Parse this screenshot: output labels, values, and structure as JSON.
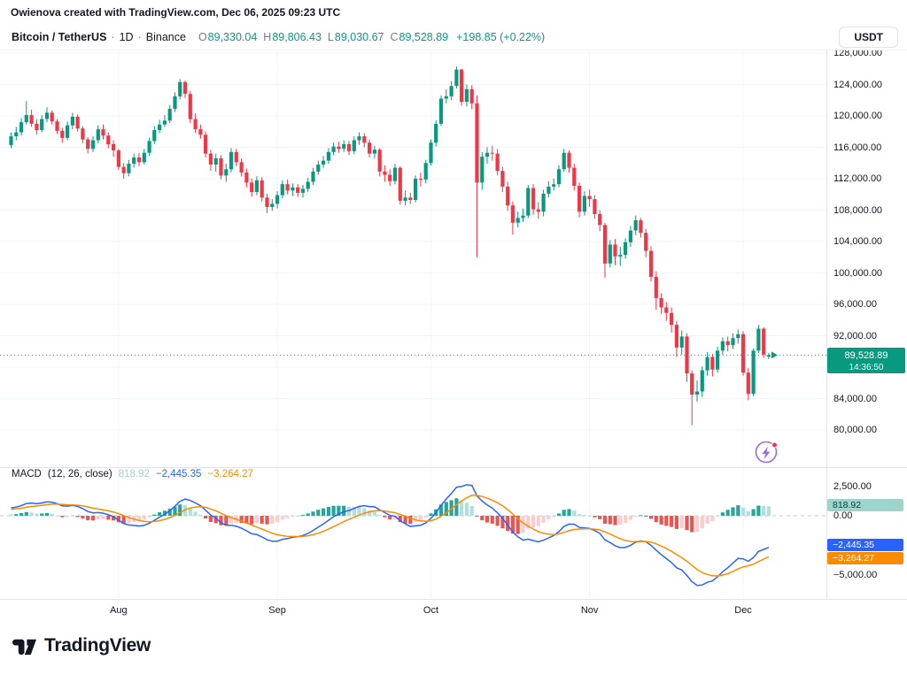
{
  "attribution": "Owienova created with TradingView.com, Dec 06, 2025 09:23 UTC",
  "header": {
    "symbol": "Bitcoin / TetherUS",
    "separator": "·",
    "interval": "1D",
    "exchange": "Binance",
    "ohlc": {
      "o_label": "O",
      "o": "89,330.04",
      "h_label": "H",
      "h": "89,806.43",
      "l_label": "L",
      "l": "89,030.67",
      "c_label": "C",
      "c": "89,528.89",
      "change": "+198.85 (+0.22%)"
    },
    "currency_button": "USDT"
  },
  "price_scale": {
    "ticks": [
      "128,000.00",
      "124,000.00",
      "120,000.00",
      "116,000.00",
      "112,000.00",
      "108,000.00",
      "104,000.00",
      "100,000.00",
      "96,000.00",
      "92,000.00",
      "88,000.00",
      "84,000.00",
      "80,000.00"
    ],
    "tick_values": [
      128000,
      124000,
      120000,
      116000,
      112000,
      108000,
      104000,
      100000,
      96000,
      92000,
      88000,
      84000,
      80000
    ],
    "last_price_label": "89,528.89",
    "countdown": "14:36:50"
  },
  "macd": {
    "title": "MACD",
    "params": "(12, 26, close)",
    "hist_value": "818.92",
    "macd_value": "−2,445.35",
    "signal_value": "−3,264.27",
    "ticks": [
      {
        "label": "2,500.00",
        "value": 2500
      },
      {
        "label": "0.00",
        "value": 0
      },
      {
        "label": "−5,000.00",
        "value": -5000
      }
    ]
  },
  "time_axis": {
    "months": [
      {
        "label": "Aug",
        "day_index": 21
      },
      {
        "label": "Sep",
        "day_index": 52
      },
      {
        "label": "Oct",
        "day_index": 82
      },
      {
        "label": "Nov",
        "day_index": 113
      },
      {
        "label": "Dec",
        "day_index": 143
      }
    ]
  },
  "logo_text": "TradingView",
  "colors": {
    "up": "#089981",
    "down": "#f23645",
    "macd_line": "#2962ff",
    "signal_line": "#fb8c00",
    "hist_up": "#26a69a",
    "hist_up_fade": "#b2dfdb",
    "hist_down": "#ef5350",
    "hist_down_fade": "#fccbcd",
    "badge": "#089981",
    "hist_badge_bg": "#9fd4ca",
    "hist_badge_text": "#12423b",
    "macd_badge_bg": "#2962ff",
    "signal_badge_bg": "#fb8c00",
    "grid": "#f2f4f8",
    "zero_line": "#b6bcc6"
  },
  "chart_data": {
    "type": "candlestick+macd",
    "symbol": "Bitcoin / TetherUS (Binance)",
    "interval": "1D",
    "start_date": "2025-07-11",
    "price_axis_range": [
      79500,
      128400
    ],
    "macd_axis_range": [
      -7000,
      3600
    ],
    "macd_params": [
      12,
      26,
      9
    ],
    "macd_readout": {
      "histogram": 818.92,
      "macd": -2445.35,
      "signal": -3264.27
    },
    "last": {
      "open": 89330.04,
      "high": 89806.43,
      "low": 89030.67,
      "close": 89528.89,
      "change": 198.85,
      "change_pct": 0.22
    },
    "candles": [
      [
        116300,
        117900,
        115900,
        117400
      ],
      [
        117400,
        118600,
        116900,
        117900
      ],
      [
        117900,
        119700,
        117500,
        119200
      ],
      [
        119200,
        121900,
        118900,
        120100
      ],
      [
        120100,
        120800,
        118600,
        119000
      ],
      [
        119000,
        119600,
        117600,
        118200
      ],
      [
        118200,
        120100,
        117900,
        119600
      ],
      [
        119600,
        121100,
        119200,
        120400
      ],
      [
        120400,
        120700,
        118900,
        119300
      ],
      [
        119300,
        119600,
        117700,
        118100
      ],
      [
        118100,
        118500,
        116600,
        117200
      ],
      [
        117200,
        119300,
        116900,
        118800
      ],
      [
        118800,
        120400,
        118300,
        119900
      ],
      [
        119900,
        120200,
        118000,
        118400
      ],
      [
        118400,
        118700,
        116500,
        117000
      ],
      [
        117000,
        117300,
        115200,
        115800
      ],
      [
        115800,
        117400,
        115400,
        116900
      ],
      [
        116900,
        118800,
        116500,
        118300
      ],
      [
        118300,
        118900,
        117000,
        117500
      ],
      [
        117500,
        117900,
        115900,
        116400
      ],
      [
        116400,
        116900,
        114800,
        115600
      ],
      [
        115600,
        115800,
        113100,
        113500
      ],
      [
        113500,
        114000,
        112000,
        112700
      ],
      [
        112700,
        114400,
        112300,
        113900
      ],
      [
        113900,
        115200,
        113400,
        114700
      ],
      [
        114700,
        115300,
        113600,
        114100
      ],
      [
        114100,
        115800,
        113800,
        115300
      ],
      [
        115300,
        117200,
        114900,
        116800
      ],
      [
        116800,
        118700,
        116400,
        118200
      ],
      [
        118200,
        119500,
        117800,
        118900
      ],
      [
        118900,
        120100,
        118600,
        119400
      ],
      [
        119400,
        121400,
        119100,
        120900
      ],
      [
        120900,
        123000,
        120500,
        122500
      ],
      [
        122500,
        124700,
        122100,
        124300
      ],
      [
        124300,
        124500,
        122300,
        122800
      ],
      [
        122800,
        123200,
        119100,
        119600
      ],
      [
        119600,
        120300,
        117800,
        118300
      ],
      [
        118300,
        118900,
        117100,
        117600
      ],
      [
        117600,
        118000,
        114700,
        115200
      ],
      [
        115200,
        115700,
        113000,
        113800
      ],
      [
        113800,
        115200,
        112900,
        114600
      ],
      [
        114600,
        115000,
        111900,
        112400
      ],
      [
        112400,
        113900,
        111600,
        113200
      ],
      [
        113200,
        115900,
        112800,
        115400
      ],
      [
        115400,
        115800,
        113600,
        114100
      ],
      [
        114100,
        114600,
        112300,
        112800
      ],
      [
        112800,
        113300,
        110900,
        111500
      ],
      [
        111500,
        112000,
        109700,
        110300
      ],
      [
        110300,
        112300,
        109900,
        111800
      ],
      [
        111800,
        112200,
        109100,
        109600
      ],
      [
        109600,
        110100,
        107600,
        108400
      ],
      [
        108400,
        109400,
        107900,
        108800
      ],
      [
        108800,
        110400,
        108200,
        109900
      ],
      [
        109900,
        111800,
        109500,
        111300
      ],
      [
        111300,
        111900,
        110000,
        110500
      ],
      [
        110500,
        111400,
        109800,
        110900
      ],
      [
        110900,
        111300,
        109700,
        110200
      ],
      [
        110200,
        111200,
        109600,
        110700
      ],
      [
        110700,
        112100,
        110300,
        111600
      ],
      [
        111600,
        113400,
        111200,
        112900
      ],
      [
        112900,
        114300,
        112500,
        113800
      ],
      [
        113800,
        114900,
        113400,
        114300
      ],
      [
        114300,
        115900,
        113900,
        115400
      ],
      [
        115400,
        116600,
        115000,
        116100
      ],
      [
        116100,
        116700,
        115300,
        115800
      ],
      [
        115800,
        116900,
        115400,
        116400
      ],
      [
        116400,
        116800,
        115000,
        115500
      ],
      [
        115500,
        117400,
        115100,
        116900
      ],
      [
        116900,
        117900,
        116300,
        117400
      ],
      [
        117400,
        117800,
        116000,
        116600
      ],
      [
        116600,
        117000,
        114700,
        115200
      ],
      [
        115200,
        116200,
        114600,
        115700
      ],
      [
        115700,
        115900,
        112300,
        112900
      ],
      [
        112900,
        113700,
        111600,
        112500
      ],
      [
        112500,
        113200,
        111100,
        111700
      ],
      [
        111700,
        113900,
        111300,
        113400
      ],
      [
        113400,
        113600,
        108700,
        109200
      ],
      [
        109200,
        110500,
        108600,
        109600
      ],
      [
        109600,
        110200,
        108800,
        109300
      ],
      [
        109300,
        112400,
        109000,
        112000
      ],
      [
        112000,
        112800,
        111000,
        111900
      ],
      [
        111900,
        114400,
        111400,
        114000
      ],
      [
        114000,
        117000,
        113700,
        116600
      ],
      [
        116600,
        119400,
        116100,
        119000
      ],
      [
        119000,
        122600,
        118700,
        122200
      ],
      [
        122200,
        123400,
        121600,
        122500
      ],
      [
        122500,
        124400,
        122000,
        123800
      ],
      [
        123800,
        126300,
        123500,
        125900
      ],
      [
        125900,
        126000,
        121300,
        121800
      ],
      [
        121800,
        124000,
        121200,
        123400
      ],
      [
        123400,
        123900,
        120900,
        121600
      ],
      [
        121600,
        122600,
        102000,
        111500
      ],
      [
        111500,
        115400,
        110600,
        114800
      ],
      [
        114800,
        116000,
        113900,
        115300
      ],
      [
        115300,
        116200,
        114300,
        115200
      ],
      [
        115200,
        115800,
        112400,
        113000
      ],
      [
        113000,
        113500,
        110300,
        111000
      ],
      [
        111000,
        111600,
        107900,
        108600
      ],
      [
        108600,
        109100,
        104900,
        106400
      ],
      [
        106400,
        107800,
        105800,
        107000
      ],
      [
        107000,
        108200,
        106500,
        107300
      ],
      [
        107300,
        111200,
        107000,
        110800
      ],
      [
        110800,
        111300,
        107400,
        108100
      ],
      [
        108100,
        109000,
        106900,
        107800
      ],
      [
        107800,
        110600,
        107200,
        110100
      ],
      [
        110100,
        111700,
        109600,
        111000
      ],
      [
        111000,
        112000,
        110500,
        111300
      ],
      [
        111300,
        113700,
        110900,
        113200
      ],
      [
        113200,
        115800,
        112900,
        115300
      ],
      [
        115300,
        115600,
        112800,
        113400
      ],
      [
        113400,
        113900,
        110500,
        111100
      ],
      [
        111100,
        111500,
        107100,
        107800
      ],
      [
        107800,
        110400,
        107300,
        109800
      ],
      [
        109800,
        110600,
        108400,
        109400
      ],
      [
        109400,
        109900,
        106900,
        107500
      ],
      [
        107500,
        108000,
        105300,
        106100
      ],
      [
        106100,
        106400,
        99400,
        101200
      ],
      [
        101200,
        104200,
        100700,
        103600
      ],
      [
        103600,
        104300,
        101000,
        102100
      ],
      [
        102100,
        103300,
        100900,
        102300
      ],
      [
        102300,
        104400,
        101800,
        103900
      ],
      [
        103900,
        106000,
        103300,
        105400
      ],
      [
        105400,
        107300,
        104800,
        106700
      ],
      [
        106700,
        107000,
        104500,
        105100
      ],
      [
        105100,
        105600,
        102000,
        102800
      ],
      [
        102800,
        103400,
        98900,
        99500
      ],
      [
        99500,
        100200,
        95300,
        96800
      ],
      [
        96800,
        97400,
        94800,
        95600
      ],
      [
        95600,
        96300,
        93900,
        94900
      ],
      [
        94900,
        95600,
        92400,
        93400
      ],
      [
        93400,
        93900,
        89300,
        90500
      ],
      [
        90500,
        92700,
        89600,
        91900
      ],
      [
        91900,
        92300,
        86100,
        87200
      ],
      [
        87200,
        87600,
        80600,
        84500
      ],
      [
        84500,
        86300,
        83600,
        84900
      ],
      [
        84900,
        88100,
        84200,
        87600
      ],
      [
        87600,
        89900,
        86900,
        89300
      ],
      [
        89300,
        89700,
        86800,
        87700
      ],
      [
        87700,
        90600,
        87300,
        90100
      ],
      [
        90100,
        91800,
        89600,
        91300
      ],
      [
        91300,
        91900,
        90000,
        90800
      ],
      [
        90800,
        92300,
        90300,
        91700
      ],
      [
        91700,
        92800,
        91000,
        92200
      ],
      [
        92200,
        92600,
        86900,
        87300
      ],
      [
        87300,
        87900,
        83800,
        84600
      ],
      [
        84600,
        90400,
        84300,
        90100
      ],
      [
        90100,
        93400,
        89800,
        92900
      ],
      [
        92900,
        93100,
        89200,
        89600
      ],
      [
        89330.04,
        89806.43,
        89030.67,
        89528.89
      ]
    ]
  }
}
